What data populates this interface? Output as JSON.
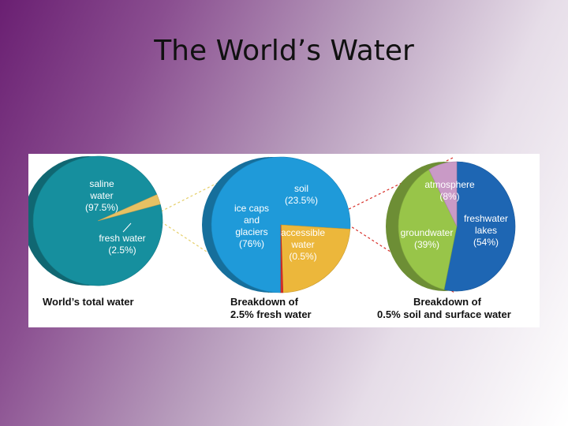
{
  "slide": {
    "title": "The World’s Water"
  },
  "colors": {
    "saline": "#168f9e",
    "fresh": "#e7c163",
    "ice": "#1f9ad9",
    "soil": "#ecb73b",
    "accessible": "#d8302a",
    "lakes": "#1e66b3",
    "groundwater": "#98c549",
    "atmosphere": "#c99ac6",
    "connector_fresh": "#e6cf6a",
    "connector_accessible": "#d8302a"
  },
  "chart_data": [
    {
      "type": "pie",
      "title": "World’s total water",
      "slices": [
        {
          "label_lines": [
            "saline",
            "water",
            "(97.5%)"
          ],
          "name": "saline water",
          "value": 97.5,
          "color_key": "saline"
        },
        {
          "label_lines": [
            "fresh water",
            "(2.5%)"
          ],
          "name": "fresh water",
          "value": 2.5,
          "color_key": "fresh"
        }
      ]
    },
    {
      "type": "pie",
      "title": "Breakdown of 2.5% fresh water",
      "title_lines": [
        "Breakdown of",
        "2.5% fresh water"
      ],
      "slices": [
        {
          "label_lines": [
            "ice caps",
            "and",
            "glaciers",
            "(76%)"
          ],
          "name": "ice caps and glaciers",
          "value": 76,
          "color_key": "ice"
        },
        {
          "label_lines": [
            "soil",
            "(23.5%)"
          ],
          "name": "soil",
          "value": 23.5,
          "color_key": "soil"
        },
        {
          "label_lines": [
            "accessible",
            "water",
            "(0.5%)"
          ],
          "name": "accessible water",
          "value": 0.5,
          "color_key": "accessible"
        }
      ]
    },
    {
      "type": "pie",
      "title": "Breakdown of 0.5% soil and surface water",
      "title_lines": [
        "Breakdown of",
        "0.5% soil and surface water"
      ],
      "slices": [
        {
          "label_lines": [
            "freshwater",
            "lakes",
            "(54%)"
          ],
          "name": "freshwater lakes",
          "value": 54,
          "color_key": "lakes"
        },
        {
          "label_lines": [
            "groundwater",
            "(39%)"
          ],
          "name": "groundwater",
          "value": 39,
          "color_key": "groundwater"
        },
        {
          "label_lines": [
            "atmosphere",
            "(8%)"
          ],
          "name": "atmosphere",
          "value": 8,
          "color_key": "atmosphere"
        }
      ]
    }
  ]
}
